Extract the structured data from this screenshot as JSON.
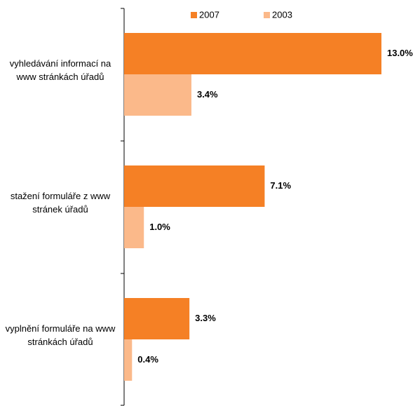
{
  "chart_data": {
    "type": "bar",
    "orientation": "horizontal",
    "categories": [
      "vyhledávání informací na www stránkách úřadů",
      "stažení formuláře z www stránek úřadů",
      "vyplnění formuláře na www stránkách úřadů"
    ],
    "series": [
      {
        "name": "2007",
        "color": "#f58025",
        "values": [
          13.0,
          7.1,
          3.3
        ],
        "value_labels": [
          "13.0%",
          "7.1%",
          "3.3%"
        ]
      },
      {
        "name": "2003",
        "color": "#fbb98a",
        "values": [
          3.4,
          1.0,
          0.4
        ],
        "value_labels": [
          "3.4%",
          "1.0%",
          "0.4%"
        ]
      }
    ],
    "legend": "top"
  }
}
